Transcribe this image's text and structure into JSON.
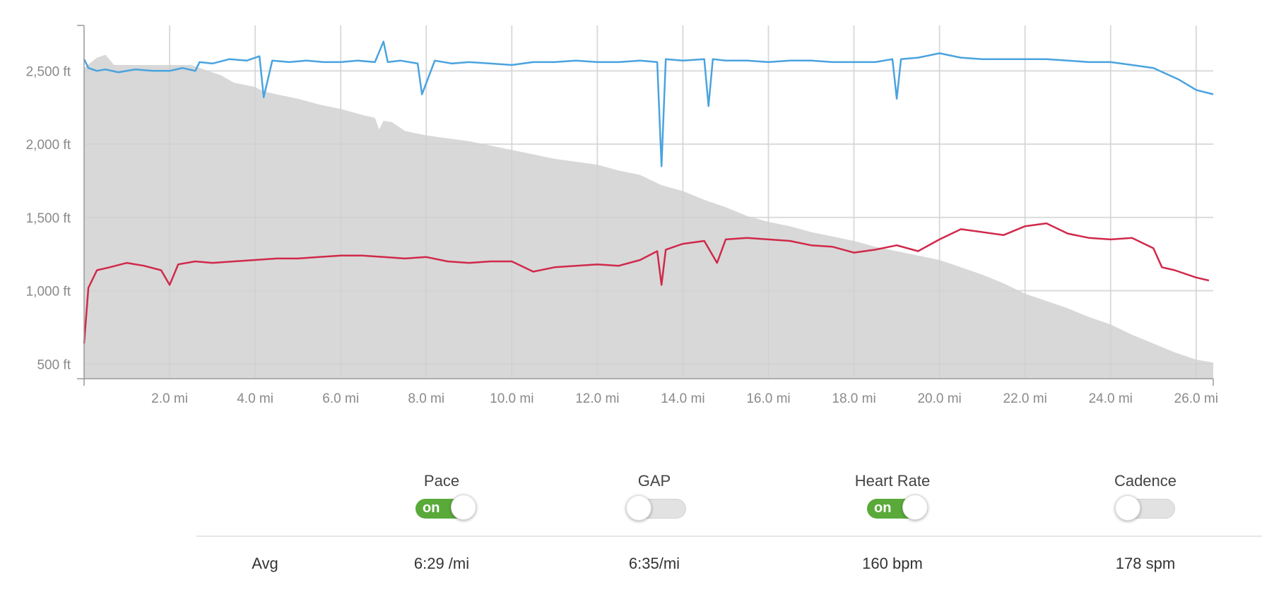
{
  "chart_data": {
    "type": "line",
    "x_unit": "mi",
    "xlim": [
      0,
      26.4
    ],
    "ylim": [
      400,
      2810
    ],
    "x_ticks": [
      "2.0 mi",
      "4.0 mi",
      "6.0 mi",
      "8.0 mi",
      "10.0 mi",
      "12.0 mi",
      "14.0 mi",
      "16.0 mi",
      "18.0 mi",
      "20.0 mi",
      "22.0 mi",
      "24.0 mi",
      "26.0 mi"
    ],
    "y_ticks": [
      "500 ft",
      "1,000 ft",
      "1,500 ft",
      "2,000 ft",
      "2,500 ft"
    ],
    "elevation": {
      "x": [
        0,
        0.3,
        0.5,
        0.7,
        1.0,
        1.5,
        2.0,
        2.5,
        2.8,
        3.2,
        3.5,
        4.0,
        4.2,
        4.5,
        5.0,
        5.5,
        6.0,
        6.5,
        6.8,
        6.9,
        7.0,
        7.2,
        7.5,
        8.0,
        9.0,
        10.0,
        11.0,
        12.0,
        12.5,
        13.0,
        13.5,
        14.0,
        14.5,
        15.0,
        15.5,
        16.0,
        16.5,
        17.0,
        17.5,
        18.0,
        18.5,
        19.0,
        19.5,
        20.0,
        20.5,
        21.0,
        21.5,
        22.0,
        22.5,
        23.0,
        23.5,
        24.0,
        24.5,
        25.0,
        25.5,
        26.0,
        26.4
      ],
      "y": [
        2520,
        2590,
        2610,
        2540,
        2540,
        2540,
        2540,
        2540,
        2510,
        2470,
        2420,
        2390,
        2360,
        2340,
        2310,
        2270,
        2240,
        2200,
        2180,
        2100,
        2160,
        2150,
        2090,
        2060,
        2020,
        1960,
        1900,
        1860,
        1820,
        1790,
        1720,
        1680,
        1620,
        1570,
        1510,
        1470,
        1440,
        1400,
        1370,
        1340,
        1300,
        1270,
        1240,
        1210,
        1160,
        1110,
        1050,
        980,
        930,
        880,
        820,
        770,
        700,
        640,
        580,
        530,
        510
      ]
    },
    "series": [
      {
        "name": "Pace",
        "color": "#4aa3df",
        "x": [
          0,
          0.1,
          0.3,
          0.5,
          0.8,
          1.2,
          1.6,
          2.0,
          2.3,
          2.6,
          2.7,
          3.0,
          3.4,
          3.8,
          4.1,
          4.2,
          4.4,
          4.8,
          5.2,
          5.6,
          6.0,
          6.4,
          6.8,
          7.0,
          7.1,
          7.4,
          7.8,
          7.9,
          8.2,
          8.6,
          9.0,
          9.5,
          10.0,
          10.5,
          11.0,
          11.5,
          12.0,
          12.5,
          13.0,
          13.4,
          13.5,
          13.6,
          14.0,
          14.5,
          14.6,
          14.7,
          15.0,
          15.5,
          16.0,
          16.5,
          17.0,
          17.5,
          18.0,
          18.5,
          18.9,
          19.0,
          19.1,
          19.5,
          20.0,
          20.5,
          21.0,
          21.5,
          22.0,
          22.5,
          23.0,
          23.5,
          24.0,
          24.5,
          25.0,
          25.3,
          25.6,
          26.0,
          26.4
        ],
        "y": [
          2580,
          2520,
          2500,
          2510,
          2490,
          2510,
          2500,
          2500,
          2520,
          2500,
          2560,
          2550,
          2580,
          2570,
          2600,
          2320,
          2570,
          2560,
          2570,
          2560,
          2560,
          2570,
          2560,
          2700,
          2560,
          2570,
          2550,
          2340,
          2570,
          2550,
          2560,
          2550,
          2540,
          2560,
          2560,
          2570,
          2560,
          2560,
          2570,
          2560,
          1850,
          2580,
          2570,
          2580,
          2260,
          2580,
          2570,
          2570,
          2560,
          2570,
          2570,
          2560,
          2560,
          2560,
          2580,
          2310,
          2580,
          2590,
          2620,
          2590,
          2580,
          2580,
          2580,
          2580,
          2570,
          2560,
          2560,
          2540,
          2520,
          2480,
          2440,
          2370,
          2340
        ]
      },
      {
        "name": "Heart Rate",
        "color": "#d0294a",
        "x": [
          0,
          0.1,
          0.3,
          0.6,
          1.0,
          1.4,
          1.8,
          2.0,
          2.2,
          2.6,
          3.0,
          3.5,
          4.0,
          4.5,
          5.0,
          5.5,
          6.0,
          6.5,
          7.0,
          7.5,
          8.0,
          8.5,
          9.0,
          9.5,
          10.0,
          10.5,
          11.0,
          11.5,
          12.0,
          12.5,
          13.0,
          13.4,
          13.5,
          13.6,
          14.0,
          14.5,
          14.8,
          15.0,
          15.5,
          16.0,
          16.5,
          17.0,
          17.5,
          18.0,
          18.5,
          19.0,
          19.5,
          20.0,
          20.5,
          21.0,
          21.5,
          22.0,
          22.5,
          23.0,
          23.5,
          24.0,
          24.5,
          25.0,
          25.2,
          25.5,
          26.0,
          26.3
        ],
        "y": [
          640,
          1020,
          1140,
          1160,
          1190,
          1170,
          1140,
          1040,
          1180,
          1200,
          1190,
          1200,
          1210,
          1220,
          1220,
          1230,
          1240,
          1240,
          1230,
          1220,
          1230,
          1200,
          1190,
          1200,
          1200,
          1130,
          1160,
          1170,
          1180,
          1170,
          1210,
          1270,
          1040,
          1280,
          1320,
          1340,
          1190,
          1350,
          1360,
          1350,
          1340,
          1310,
          1300,
          1260,
          1280,
          1310,
          1270,
          1350,
          1420,
          1400,
          1380,
          1440,
          1460,
          1390,
          1360,
          1350,
          1360,
          1290,
          1160,
          1140,
          1090,
          1070
        ]
      }
    ]
  },
  "controls": {
    "metrics": [
      {
        "label": "Pace",
        "state": "on",
        "toggle_text": "on",
        "avg_num": "6:29",
        "avg_unit": " /mi"
      },
      {
        "label": "GAP",
        "state": "off",
        "toggle_text": "",
        "avg_num": "6:35/mi",
        "avg_unit": ""
      },
      {
        "label": "Heart Rate",
        "state": "on",
        "toggle_text": "on",
        "avg_num": "160",
        "avg_unit": " bpm"
      },
      {
        "label": "Cadence",
        "state": "off",
        "toggle_text": "",
        "avg_num": "178",
        "avg_unit": " spm"
      }
    ],
    "avg_label": "Avg"
  }
}
